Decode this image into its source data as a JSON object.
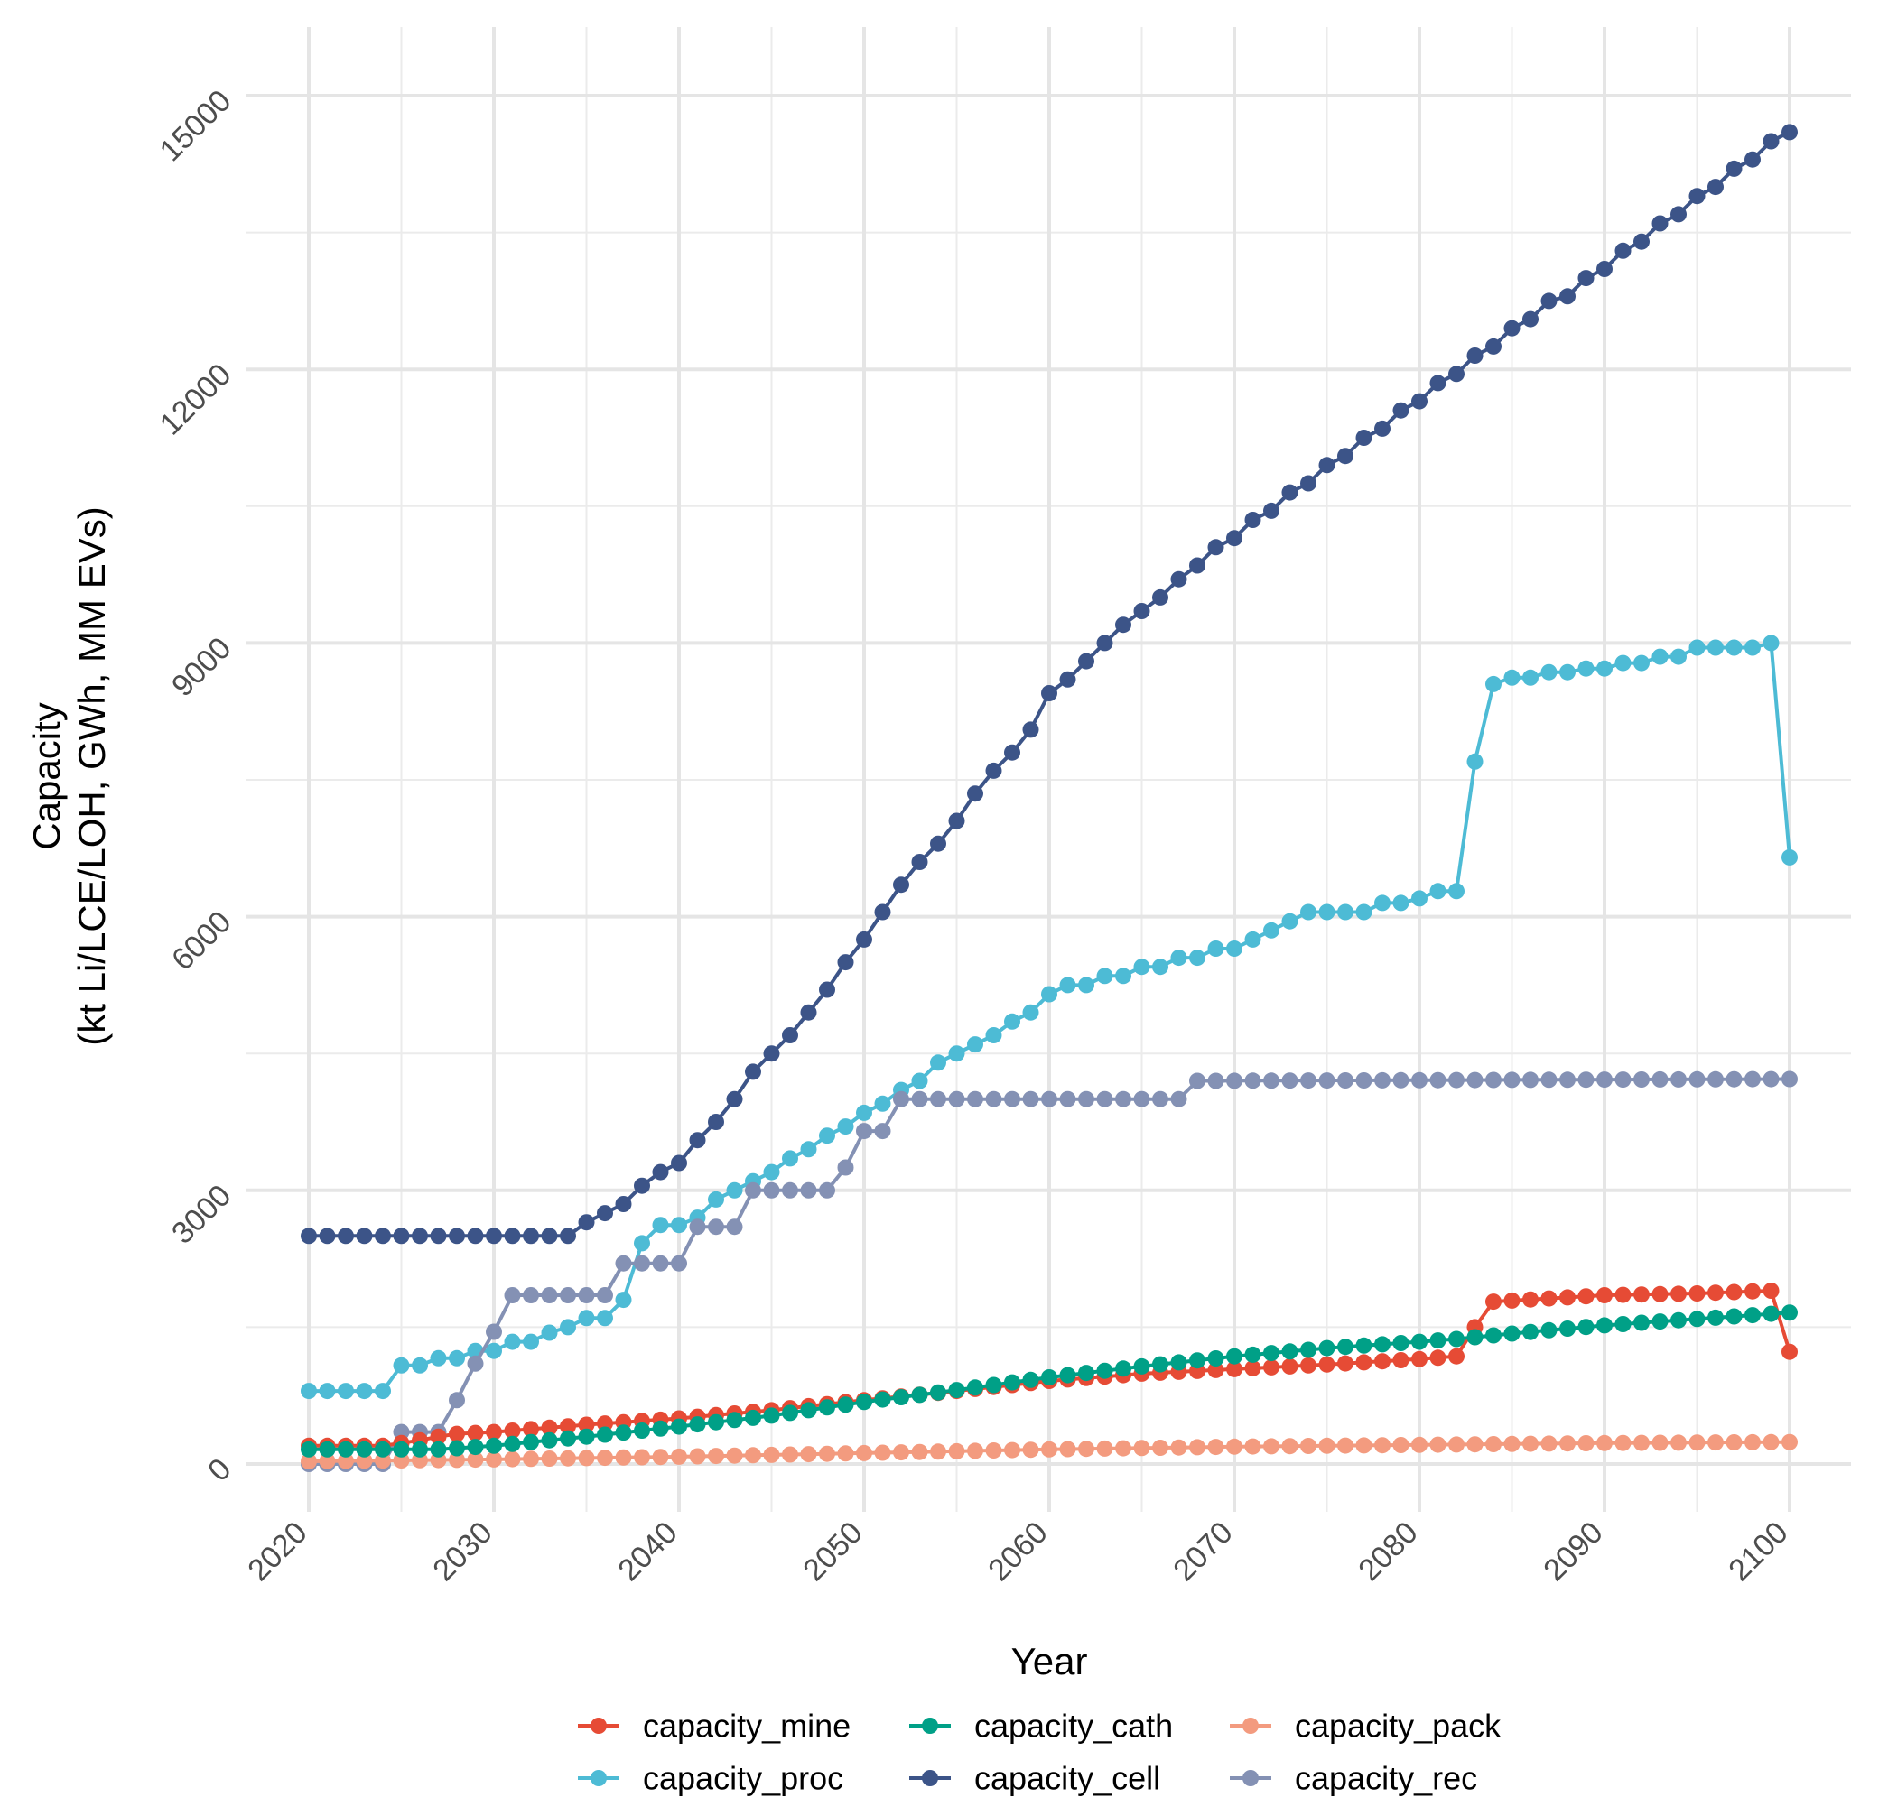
{
  "chart_data": {
    "type": "line",
    "title": "",
    "xlabel": "Year",
    "ylabel_line1": "Capacity",
    "ylabel_line2": "(kt Li/LCE/LOH, GWh, MM EVs)",
    "xlim": [
      2020,
      2100
    ],
    "ylim": [
      0,
      15000
    ],
    "x_ticks": [
      2020,
      2030,
      2040,
      2050,
      2060,
      2070,
      2080,
      2090,
      2100
    ],
    "y_ticks": [
      0,
      3000,
      6000,
      9000,
      12000,
      15000
    ],
    "x_tick_labels": [
      "2020",
      "2030",
      "2040",
      "2050",
      "2060",
      "2070",
      "2080",
      "2090",
      "2100"
    ],
    "y_tick_labels": [
      "0",
      "3000",
      "6000",
      "9000",
      "12000",
      "15000"
    ],
    "grid": true,
    "legend_position": "bottom",
    "series": [
      {
        "name": "capacity_mine",
        "color": "#e64b35",
        "keypoints": [
          [
            2020,
            200
          ],
          [
            2024,
            200
          ],
          [
            2025,
            230
          ],
          [
            2026,
            260
          ],
          [
            2027,
            300
          ],
          [
            2028,
            330
          ],
          [
            2030,
            350
          ],
          [
            2035,
            430
          ],
          [
            2040,
            500
          ],
          [
            2045,
            590
          ],
          [
            2050,
            700
          ],
          [
            2055,
            800
          ],
          [
            2060,
            910
          ],
          [
            2065,
            990
          ],
          [
            2070,
            1040
          ],
          [
            2075,
            1090
          ],
          [
            2080,
            1150
          ],
          [
            2082,
            1180
          ],
          [
            2083,
            1500
          ],
          [
            2084,
            1780
          ],
          [
            2090,
            1850
          ],
          [
            2095,
            1870
          ],
          [
            2099,
            1900
          ],
          [
            2100,
            1230
          ]
        ]
      },
      {
        "name": "capacity_proc",
        "color": "#4dbbd5",
        "keypoints": [
          [
            2020,
            800
          ],
          [
            2024,
            800
          ],
          [
            2025,
            1080
          ],
          [
            2026,
            1080
          ],
          [
            2027,
            1160
          ],
          [
            2028,
            1160
          ],
          [
            2029,
            1240
          ],
          [
            2030,
            1240
          ],
          [
            2031,
            1340
          ],
          [
            2032,
            1340
          ],
          [
            2033,
            1440
          ],
          [
            2034,
            1500
          ],
          [
            2035,
            1600
          ],
          [
            2036,
            1600
          ],
          [
            2037,
            1800
          ],
          [
            2038,
            2420
          ],
          [
            2039,
            2620
          ],
          [
            2040,
            2620
          ],
          [
            2041,
            2700
          ],
          [
            2042,
            2900
          ],
          [
            2043,
            3000
          ],
          [
            2044,
            3100
          ],
          [
            2045,
            3200
          ],
          [
            2046,
            3350
          ],
          [
            2047,
            3450
          ],
          [
            2048,
            3600
          ],
          [
            2049,
            3700
          ],
          [
            2050,
            3850
          ],
          [
            2051,
            3950
          ],
          [
            2052,
            4100
          ],
          [
            2053,
            4200
          ],
          [
            2054,
            4400
          ],
          [
            2055,
            4500
          ],
          [
            2056,
            4600
          ],
          [
            2057,
            4700
          ],
          [
            2058,
            4850
          ],
          [
            2059,
            4950
          ],
          [
            2060,
            5150
          ],
          [
            2061,
            5250
          ],
          [
            2062,
            5250
          ],
          [
            2063,
            5350
          ],
          [
            2064,
            5350
          ],
          [
            2065,
            5450
          ],
          [
            2066,
            5450
          ],
          [
            2067,
            5550
          ],
          [
            2068,
            5550
          ],
          [
            2069,
            5650
          ],
          [
            2070,
            5650
          ],
          [
            2071,
            5750
          ],
          [
            2072,
            5850
          ],
          [
            2073,
            5950
          ],
          [
            2074,
            6050
          ],
          [
            2075,
            6050
          ],
          [
            2076,
            6050
          ],
          [
            2077,
            6050
          ],
          [
            2078,
            6150
          ],
          [
            2079,
            6150
          ],
          [
            2080,
            6200
          ],
          [
            2081,
            6280
          ],
          [
            2082,
            6280
          ],
          [
            2083,
            7700
          ],
          [
            2084,
            8550
          ],
          [
            2085,
            8620
          ],
          [
            2086,
            8620
          ],
          [
            2087,
            8680
          ],
          [
            2088,
            8680
          ],
          [
            2089,
            8720
          ],
          [
            2090,
            8720
          ],
          [
            2091,
            8780
          ],
          [
            2092,
            8780
          ],
          [
            2093,
            8850
          ],
          [
            2094,
            8850
          ],
          [
            2095,
            8950
          ],
          [
            2096,
            8950
          ],
          [
            2097,
            8950
          ],
          [
            2098,
            8950
          ],
          [
            2099,
            9000
          ],
          [
            2100,
            6650
          ]
        ]
      },
      {
        "name": "capacity_cath",
        "color": "#00a087",
        "keypoints": [
          [
            2020,
            160
          ],
          [
            2024,
            160
          ],
          [
            2027,
            160
          ],
          [
            2030,
            200
          ],
          [
            2035,
            300
          ],
          [
            2040,
            410
          ],
          [
            2045,
            530
          ],
          [
            2050,
            680
          ],
          [
            2055,
            810
          ],
          [
            2060,
            950
          ],
          [
            2065,
            1070
          ],
          [
            2070,
            1180
          ],
          [
            2075,
            1270
          ],
          [
            2080,
            1340
          ],
          [
            2082,
            1370
          ],
          [
            2085,
            1430
          ],
          [
            2090,
            1520
          ],
          [
            2095,
            1590
          ],
          [
            2100,
            1660
          ]
        ]
      },
      {
        "name": "capacity_cell",
        "color": "#3c5488",
        "keypoints": [
          [
            2020,
            2500
          ],
          [
            2034,
            2500
          ],
          [
            2035,
            2650
          ],
          [
            2036,
            2750
          ],
          [
            2037,
            2850
          ],
          [
            2038,
            3050
          ],
          [
            2039,
            3200
          ],
          [
            2040,
            3300
          ],
          [
            2041,
            3550
          ],
          [
            2042,
            3750
          ],
          [
            2043,
            4000
          ],
          [
            2044,
            4300
          ],
          [
            2045,
            4500
          ],
          [
            2046,
            4700
          ],
          [
            2047,
            4950
          ],
          [
            2048,
            5200
          ],
          [
            2049,
            5500
          ],
          [
            2050,
            5750
          ],
          [
            2051,
            6050
          ],
          [
            2052,
            6350
          ],
          [
            2053,
            6600
          ],
          [
            2054,
            6800
          ],
          [
            2055,
            7050
          ],
          [
            2056,
            7350
          ],
          [
            2057,
            7600
          ],
          [
            2058,
            7800
          ],
          [
            2059,
            8050
          ],
          [
            2060,
            8450
          ],
          [
            2061,
            8600
          ],
          [
            2062,
            8800
          ],
          [
            2063,
            9000
          ],
          [
            2064,
            9200
          ],
          [
            2065,
            9350
          ],
          [
            2066,
            9500
          ],
          [
            2067,
            9700
          ],
          [
            2068,
            9850
          ],
          [
            2069,
            10050
          ],
          [
            2070,
            10150
          ],
          [
            2071,
            10350
          ],
          [
            2072,
            10450
          ],
          [
            2073,
            10650
          ],
          [
            2074,
            10750
          ],
          [
            2075,
            10950
          ],
          [
            2076,
            11050
          ],
          [
            2077,
            11250
          ],
          [
            2078,
            11350
          ],
          [
            2079,
            11550
          ],
          [
            2080,
            11650
          ],
          [
            2081,
            11850
          ],
          [
            2082,
            11950
          ],
          [
            2083,
            12150
          ],
          [
            2084,
            12250
          ],
          [
            2085,
            12450
          ],
          [
            2086,
            12550
          ],
          [
            2087,
            12750
          ],
          [
            2088,
            12800
          ],
          [
            2089,
            13000
          ],
          [
            2090,
            13100
          ],
          [
            2091,
            13300
          ],
          [
            2092,
            13400
          ],
          [
            2093,
            13600
          ],
          [
            2094,
            13700
          ],
          [
            2095,
            13900
          ],
          [
            2096,
            14000
          ],
          [
            2097,
            14200
          ],
          [
            2098,
            14300
          ],
          [
            2099,
            14500
          ],
          [
            2100,
            14600
          ]
        ]
      },
      {
        "name": "capacity_pack",
        "color": "#f39b7f",
        "keypoints": [
          [
            2020,
            30
          ],
          [
            2030,
            50
          ],
          [
            2040,
            80
          ],
          [
            2050,
            120
          ],
          [
            2060,
            160
          ],
          [
            2070,
            190
          ],
          [
            2080,
            210
          ],
          [
            2090,
            230
          ],
          [
            2100,
            240
          ]
        ]
      },
      {
        "name": "capacity_rec",
        "color": "#8491b4",
        "keypoints": [
          [
            2020,
            0
          ],
          [
            2024,
            0
          ],
          [
            2025,
            350
          ],
          [
            2026,
            350
          ],
          [
            2027,
            350
          ],
          [
            2028,
            700
          ],
          [
            2029,
            1100
          ],
          [
            2030,
            1450
          ],
          [
            2031,
            1850
          ],
          [
            2032,
            1850
          ],
          [
            2033,
            1850
          ],
          [
            2034,
            1850
          ],
          [
            2035,
            1850
          ],
          [
            2036,
            1850
          ],
          [
            2037,
            2200
          ],
          [
            2038,
            2200
          ],
          [
            2039,
            2200
          ],
          [
            2040,
            2200
          ],
          [
            2041,
            2600
          ],
          [
            2042,
            2600
          ],
          [
            2043,
            2600
          ],
          [
            2044,
            3000
          ],
          [
            2045,
            3000
          ],
          [
            2046,
            3000
          ],
          [
            2047,
            3000
          ],
          [
            2048,
            3000
          ],
          [
            2049,
            3250
          ],
          [
            2050,
            3650
          ],
          [
            2051,
            3650
          ],
          [
            2052,
            4000
          ],
          [
            2066,
            4000
          ],
          [
            2067,
            4000
          ],
          [
            2068,
            4200
          ],
          [
            2100,
            4220
          ]
        ]
      }
    ]
  }
}
